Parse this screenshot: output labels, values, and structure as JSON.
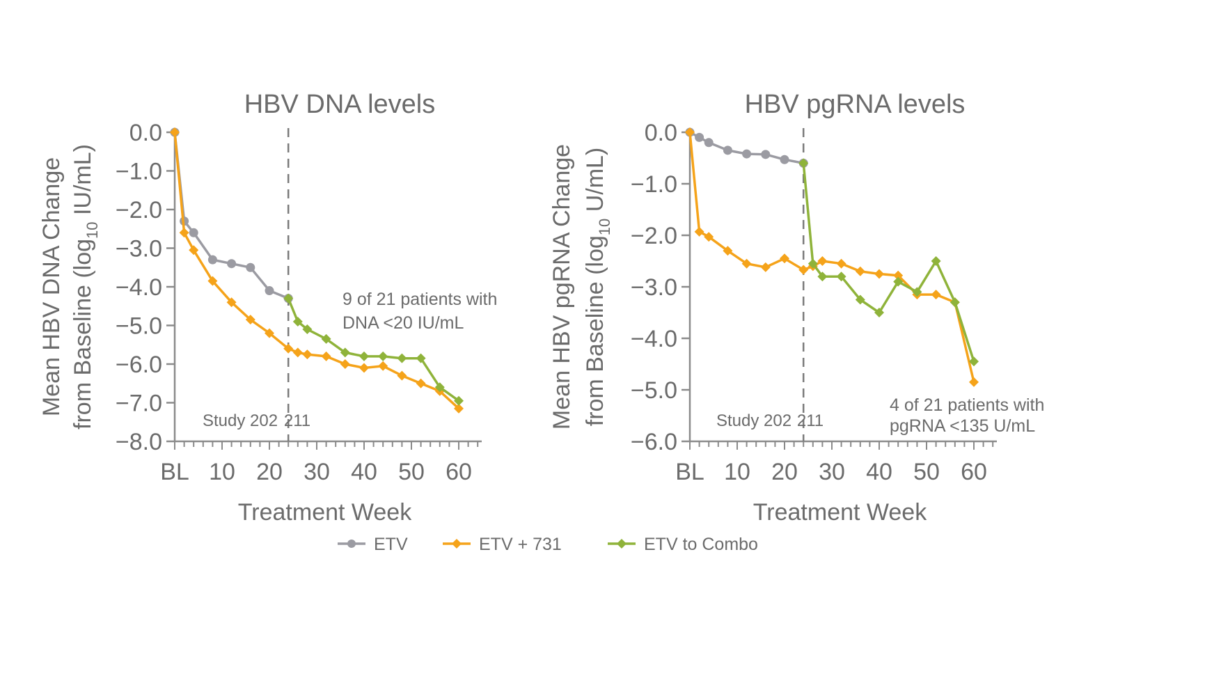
{
  "colors": {
    "etv": "#9b9ba2",
    "etv_731": "#f5a31a",
    "etv_combo": "#8fb33a",
    "axis": "#8a8a8a",
    "text": "#6b6b6b"
  },
  "legend": [
    {
      "key": "etv",
      "label": "ETV"
    },
    {
      "key": "etv_731",
      "label": "ETV + 731"
    },
    {
      "key": "etv_combo",
      "label": "ETV to Combo"
    }
  ],
  "chart_data": [
    {
      "type": "line",
      "title": "HBV DNA levels",
      "xlabel": "Treatment Week",
      "ylabel_line1": "Mean HBV DNA Change",
      "ylabel_line2_pre": "from Baseline (log",
      "ylabel_sub": "10",
      "ylabel_line2_post": "  IU/mL)",
      "xlim": [
        0,
        66
      ],
      "ylim": [
        -8.0,
        0.0
      ],
      "xticks": [
        "BL",
        "10",
        "20",
        "30",
        "40",
        "50",
        "60"
      ],
      "yticks": [
        "0.0",
        "−1.0",
        "−2.0",
        "−3.0",
        "−4.0",
        "−5.0",
        "−6.0",
        "−7.0",
        "−8.0"
      ],
      "divider_week": 24,
      "study_left": "Study 202",
      "study_right": "211",
      "annotation": [
        "9 of 21 patients with",
        "DNA <20 IU/mL"
      ],
      "series": [
        {
          "key": "etv",
          "name": "ETV",
          "x": [
            0,
            2,
            4,
            8,
            12,
            16,
            20,
            24
          ],
          "y": [
            0.0,
            -2.3,
            -2.6,
            -3.3,
            -3.4,
            -3.5,
            -4.1,
            -4.3
          ]
        },
        {
          "key": "etv_731",
          "name": "ETV + 731",
          "x": [
            0,
            2,
            4,
            8,
            12,
            16,
            20,
            24,
            26,
            28,
            32,
            36,
            40,
            44,
            48,
            52,
            56,
            60
          ],
          "y": [
            0.0,
            -2.6,
            -3.05,
            -3.85,
            -4.4,
            -4.85,
            -5.2,
            -5.6,
            -5.7,
            -5.75,
            -5.8,
            -6.0,
            -6.1,
            -6.05,
            -6.3,
            -6.5,
            -6.7,
            -7.15
          ]
        },
        {
          "key": "etv_combo",
          "name": "ETV to Combo",
          "x": [
            24,
            26,
            28,
            32,
            36,
            40,
            44,
            48,
            52,
            56,
            60
          ],
          "y": [
            -4.3,
            -4.9,
            -5.1,
            -5.35,
            -5.7,
            -5.8,
            -5.8,
            -5.85,
            -5.85,
            -6.6,
            -6.95
          ]
        }
      ]
    },
    {
      "type": "line",
      "title": "HBV pgRNA levels",
      "xlabel": "Treatment Week",
      "ylabel_line1": "Mean HBV pgRNA Change",
      "ylabel_line2_pre": "from Baseline (log",
      "ylabel_sub": "10",
      "ylabel_line2_post": "  U/mL)",
      "xlim": [
        0,
        66
      ],
      "ylim": [
        -6.0,
        0.0
      ],
      "xticks": [
        "BL",
        "10",
        "20",
        "30",
        "40",
        "50",
        "60"
      ],
      "yticks": [
        "0.0",
        "−1.0",
        "−2.0",
        "−3.0",
        "−4.0",
        "−5.0",
        "−6.0"
      ],
      "divider_week": 24,
      "study_left": "Study 202",
      "study_right": "211",
      "annotation": [
        "4 of 21 patients with",
        "pgRNA <135 U/mL"
      ],
      "series": [
        {
          "key": "etv",
          "name": "ETV",
          "x": [
            0,
            2,
            4,
            8,
            12,
            16,
            20,
            24
          ],
          "y": [
            0.0,
            -0.1,
            -0.2,
            -0.35,
            -0.42,
            -0.43,
            -0.53,
            -0.6
          ]
        },
        {
          "key": "etv_731",
          "name": "ETV + 731",
          "x": [
            0,
            2,
            4,
            8,
            12,
            16,
            20,
            24,
            26,
            28,
            32,
            36,
            40,
            44,
            48,
            52,
            56,
            60
          ],
          "y": [
            0.0,
            -1.93,
            -2.03,
            -2.3,
            -2.55,
            -2.62,
            -2.45,
            -2.67,
            -2.6,
            -2.5,
            -2.55,
            -2.7,
            -2.75,
            -2.78,
            -3.15,
            -3.15,
            -3.3,
            -4.85
          ]
        },
        {
          "key": "etv_combo",
          "name": "ETV to Combo",
          "x": [
            24,
            26,
            28,
            32,
            36,
            40,
            44,
            48,
            52,
            56,
            60
          ],
          "y": [
            -0.6,
            -2.55,
            -2.8,
            -2.8,
            -3.25,
            -3.5,
            -2.9,
            -3.1,
            -2.5,
            -3.3,
            -4.45
          ]
        }
      ]
    }
  ]
}
